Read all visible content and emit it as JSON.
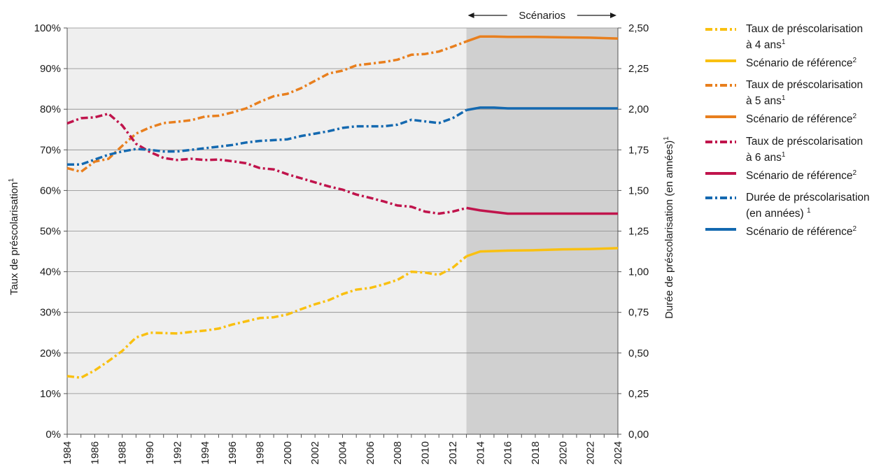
{
  "chart_data": {
    "type": "line",
    "scenario_label": "Scénarios",
    "scenario_start": 2013,
    "xlim": [
      1984,
      2024
    ],
    "x_ticks": [
      "1984",
      "1986",
      "1988",
      "1990",
      "1992",
      "1994",
      "1996",
      "1998",
      "2000",
      "2002",
      "2004",
      "2006",
      "2008",
      "2010",
      "2012",
      "2014",
      "2016",
      "2018",
      "2020",
      "2022",
      "2024"
    ],
    "y_left": {
      "label": "Taux de préscolarisation",
      "label_sup": "1",
      "ylim": [
        0,
        100
      ],
      "ticks": [
        "0%",
        "10%",
        "20%",
        "30%",
        "40%",
        "50%",
        "60%",
        "70%",
        "80%",
        "90%",
        "100%"
      ]
    },
    "y_right": {
      "label": "Durée de préscolarisation (en années)",
      "label_sup": "1",
      "ylim": [
        0,
        2.5
      ],
      "ticks": [
        "0,00",
        "0,25",
        "0,50",
        "0,75",
        "1,00",
        "1,25",
        "1,50",
        "1,75",
        "2,00",
        "2,25",
        "2,50"
      ]
    },
    "grid": true,
    "series": [
      {
        "color": "#f9c011",
        "style": "dashdot",
        "axis": "left",
        "x": [
          1984,
          1985,
          1986,
          1987,
          1988,
          1989,
          1990,
          1991,
          1992,
          1993,
          1994,
          1995,
          1996,
          1997,
          1998,
          1999,
          2000,
          2001,
          2002,
          2003,
          2004,
          2005,
          2006,
          2007,
          2008,
          2009,
          2010,
          2011,
          2012,
          2013
        ],
        "values": [
          14.3,
          13.9,
          15.7,
          18.0,
          20.5,
          23.8,
          25.0,
          24.9,
          24.8,
          25.2,
          25.5,
          26.0,
          27.0,
          27.8,
          28.6,
          28.8,
          29.5,
          30.8,
          32.0,
          33.0,
          34.5,
          35.6,
          36.0,
          36.9,
          38.0,
          40.0,
          39.8,
          39.2,
          41.0,
          43.8
        ]
      },
      {
        "color": "#f9c011",
        "style": "solid",
        "axis": "left",
        "x": [
          2013,
          2014,
          2016,
          2018,
          2020,
          2022,
          2024
        ],
        "values": [
          43.8,
          45.0,
          45.2,
          45.3,
          45.5,
          45.6,
          45.8
        ]
      },
      {
        "color": "#e87f1e",
        "style": "dashdot",
        "axis": "left",
        "x": [
          1984,
          1985,
          1986,
          1987,
          1988,
          1989,
          1990,
          1991,
          1992,
          1993,
          1994,
          1995,
          1996,
          1997,
          1998,
          1999,
          2000,
          2001,
          2002,
          2003,
          2004,
          2005,
          2006,
          2007,
          2008,
          2009,
          2010,
          2011,
          2012,
          2013
        ],
        "values": [
          65.5,
          64.6,
          67.1,
          67.8,
          71.0,
          74.0,
          75.5,
          76.6,
          76.9,
          77.3,
          78.2,
          78.4,
          79.2,
          80.2,
          81.8,
          83.2,
          83.8,
          85.2,
          87.0,
          88.8,
          89.5,
          90.8,
          91.2,
          91.6,
          92.2,
          93.4,
          93.6,
          94.2,
          95.4,
          96.7
        ]
      },
      {
        "color": "#e87f1e",
        "style": "solid",
        "axis": "left",
        "x": [
          2013,
          2014,
          2015,
          2016,
          2018,
          2020,
          2022,
          2024
        ],
        "values": [
          96.7,
          97.9,
          97.9,
          97.8,
          97.8,
          97.7,
          97.6,
          97.4
        ]
      },
      {
        "color": "#c0144c",
        "style": "dashdot",
        "axis": "left",
        "x": [
          1984,
          1985,
          1986,
          1987,
          1988,
          1989,
          1990,
          1991,
          1992,
          1993,
          1994,
          1995,
          1996,
          1997,
          1998,
          1999,
          2000,
          2001,
          2002,
          2003,
          2004,
          2005,
          2006,
          2007,
          2008,
          2009,
          2010,
          2011,
          2012,
          2013
        ],
        "values": [
          76.5,
          77.8,
          78.0,
          78.9,
          76.0,
          71.5,
          69.5,
          68.0,
          67.5,
          67.8,
          67.5,
          67.6,
          67.2,
          66.7,
          65.5,
          65.2,
          64.0,
          63.0,
          62.0,
          61.0,
          60.2,
          59.0,
          58.2,
          57.3,
          56.3,
          56.0,
          54.8,
          54.3,
          54.8,
          55.7
        ]
      },
      {
        "color": "#c0144c",
        "style": "solid",
        "axis": "left",
        "x": [
          2013,
          2014,
          2016,
          2018,
          2020,
          2022,
          2024
        ],
        "values": [
          55.7,
          55.1,
          54.3,
          54.3,
          54.3,
          54.3,
          54.3
        ]
      },
      {
        "color": "#1469b0",
        "style": "dashdot",
        "axis": "right",
        "x": [
          1984,
          1985,
          1986,
          1987,
          1988,
          1989,
          1990,
          1991,
          1992,
          1993,
          1994,
          1995,
          1996,
          1997,
          1998,
          1999,
          2000,
          2001,
          2002,
          2003,
          2004,
          2005,
          2006,
          2007,
          2008,
          2009,
          2010,
          2011,
          2012,
          2013
        ],
        "values": [
          1.66,
          1.66,
          1.69,
          1.72,
          1.74,
          1.755,
          1.75,
          1.74,
          1.74,
          1.75,
          1.76,
          1.77,
          1.78,
          1.795,
          1.805,
          1.81,
          1.815,
          1.835,
          1.85,
          1.865,
          1.885,
          1.895,
          1.895,
          1.895,
          1.905,
          1.935,
          1.925,
          1.915,
          1.945,
          1.995
        ]
      },
      {
        "color": "#1469b0",
        "style": "solid",
        "axis": "right",
        "x": [
          2013,
          2014,
          2015,
          2016,
          2018,
          2020,
          2022,
          2024
        ],
        "values": [
          1.995,
          2.01,
          2.01,
          2.005,
          2.005,
          2.005,
          2.005,
          2.005
        ]
      }
    ]
  },
  "legend": [
    {
      "style": "dashdot",
      "color": "#f9c011",
      "lines": [
        "Taux de préscolarisation",
        "à 4 ans"
      ],
      "sup": "1"
    },
    {
      "style": "solid",
      "color": "#f9c011",
      "lines": [
        "Scénario de référence"
      ],
      "sup": "2"
    },
    {
      "style": "dashdot",
      "color": "#e87f1e",
      "lines": [
        "Taux de préscolarisation",
        "à 5 ans"
      ],
      "sup": "1"
    },
    {
      "style": "solid",
      "color": "#e87f1e",
      "lines": [
        "Scénario de référence"
      ],
      "sup": "2"
    },
    {
      "style": "dashdot",
      "color": "#c0144c",
      "lines": [
        "Taux de préscolarisation",
        "à 6 ans"
      ],
      "sup": "1"
    },
    {
      "style": "solid",
      "color": "#c0144c",
      "lines": [
        "Scénario de référence"
      ],
      "sup": "2"
    },
    {
      "style": "dashdot",
      "color": "#1469b0",
      "lines": [
        "Durée de préscolarisation",
        "(en années) "
      ],
      "sup": "1"
    },
    {
      "style": "solid",
      "color": "#1469b0",
      "lines": [
        "Scénario de référence"
      ],
      "sup": "2"
    }
  ]
}
